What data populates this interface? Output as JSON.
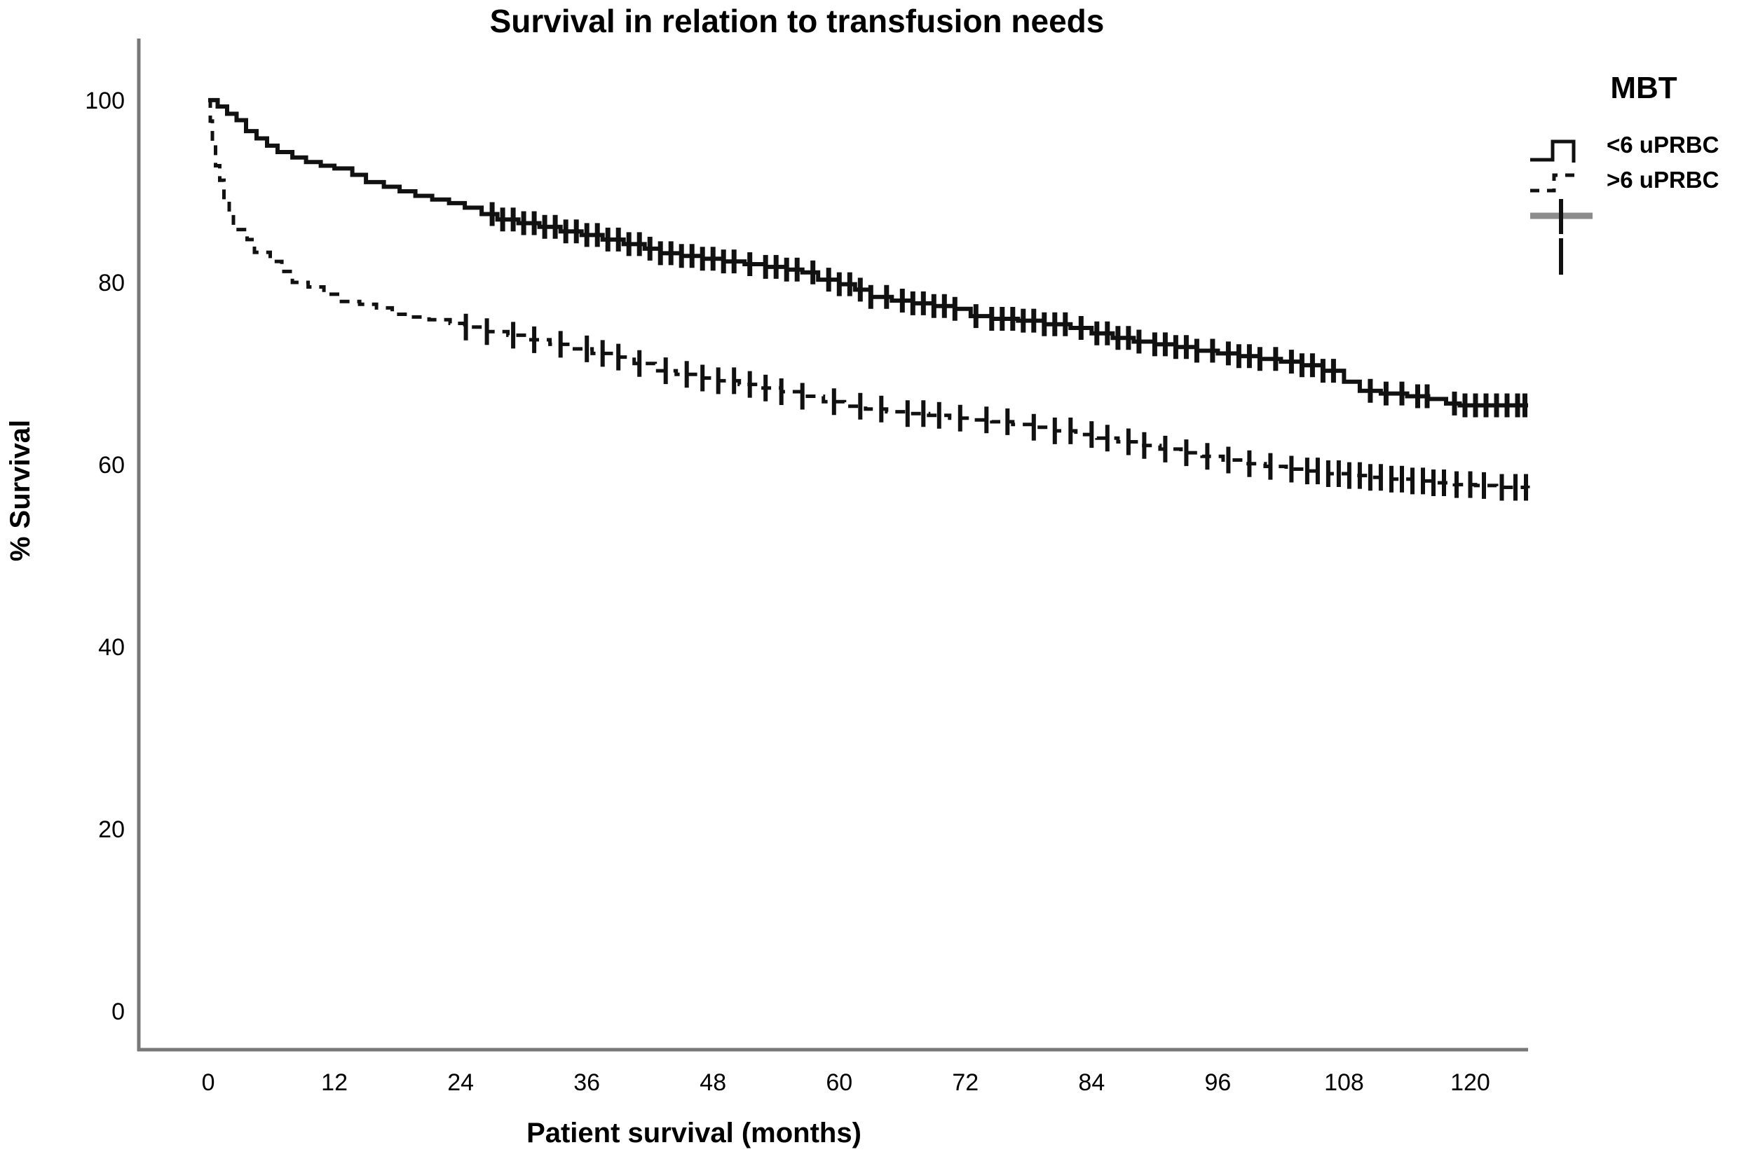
{
  "title": "Survival in relation to transfusion needs",
  "x_axis": {
    "label": "Patient survival (months)",
    "ticks": [
      0,
      12,
      24,
      36,
      48,
      60,
      72,
      84,
      96,
      108,
      120
    ],
    "range": [
      -6.6,
      125.5
    ]
  },
  "y_axis": {
    "label": "% Survival",
    "ticks": [
      0,
      20,
      40,
      60,
      80,
      100
    ],
    "range": [
      -4.23,
      106.38
    ]
  },
  "legend": {
    "title": "MBT",
    "entries": [
      {
        "label": "<6 uPRBC",
        "style": "solid-step-line"
      },
      {
        "label": ">6 uPRBC",
        "style": "dashed-step-line"
      },
      {
        "label": "",
        "style": "censor-plus-mark"
      },
      {
        "label": "",
        "style": "censor-tick-mark"
      }
    ]
  },
  "colors": {
    "curve": "#111111",
    "axis": "#787878",
    "censor_gray": "#8c8c8c",
    "background": "#ffffff"
  },
  "chart_data": {
    "type": "line",
    "subtype": "kaplan-meier-step",
    "title": "Survival in relation to transfusion needs",
    "xlabel": "Patient survival (months)",
    "ylabel": "% Survival",
    "xlim": [
      -6.6,
      125.5
    ],
    "ylim": [
      -4.23,
      106.38
    ],
    "grid": false,
    "legend_position": "top-right",
    "series": [
      {
        "name": "<6 uPRBC",
        "line_style": "solid",
        "points": [
          [
            0,
            100
          ],
          [
            0.9,
            99.3
          ],
          [
            1.8,
            98.5
          ],
          [
            2.7,
            97.8
          ],
          [
            3.6,
            96.6
          ],
          [
            4.6,
            95.8
          ],
          [
            5.6,
            95.0
          ],
          [
            6.6,
            94.3
          ],
          [
            8,
            93.7
          ],
          [
            9.3,
            93.2
          ],
          [
            10.7,
            92.8
          ],
          [
            12,
            92.5
          ],
          [
            13.7,
            91.8
          ],
          [
            15,
            91.0
          ],
          [
            16.7,
            90.5
          ],
          [
            18.2,
            90.0
          ],
          [
            19.7,
            89.5
          ],
          [
            21.3,
            89.1
          ],
          [
            22.9,
            88.7
          ],
          [
            24.4,
            88.2
          ],
          [
            26,
            87.5
          ],
          [
            27.5,
            86.9
          ],
          [
            29.5,
            86.5
          ],
          [
            31.5,
            86.1
          ],
          [
            33.5,
            85.6
          ],
          [
            35.5,
            85.2
          ],
          [
            37.5,
            84.7
          ],
          [
            39.5,
            84.2
          ],
          [
            41.5,
            83.7
          ],
          [
            43,
            83.2
          ],
          [
            45,
            82.9
          ],
          [
            47,
            82.6
          ],
          [
            49,
            82.3
          ],
          [
            51,
            82.0
          ],
          [
            53,
            81.7
          ],
          [
            55,
            81.4
          ],
          [
            56.5,
            81.1
          ],
          [
            58,
            80.3
          ],
          [
            60,
            79.8
          ],
          [
            61.5,
            79.2
          ],
          [
            63,
            78.4
          ],
          [
            65,
            78.0
          ],
          [
            67,
            77.7
          ],
          [
            69,
            77.4
          ],
          [
            71,
            77.1
          ],
          [
            72.5,
            76.3
          ],
          [
            74.5,
            76.0
          ],
          [
            77,
            75.8
          ],
          [
            79.5,
            75.4
          ],
          [
            82,
            75.0
          ],
          [
            84,
            74.4
          ],
          [
            86,
            73.9
          ],
          [
            88,
            73.5
          ],
          [
            90,
            73.2
          ],
          [
            92,
            72.9
          ],
          [
            94,
            72.5
          ],
          [
            96,
            72.2
          ],
          [
            98,
            71.9
          ],
          [
            100,
            71.6
          ],
          [
            102,
            71.3
          ],
          [
            104,
            70.9
          ],
          [
            106,
            70.3
          ],
          [
            108,
            69.1
          ],
          [
            109.5,
            68.1
          ],
          [
            111.5,
            67.8
          ],
          [
            114,
            67.5
          ],
          [
            116,
            67.2
          ],
          [
            117.7,
            66.7
          ],
          [
            119,
            66.5
          ],
          [
            125.5,
            66.5
          ]
        ],
        "censored_times": [
          27,
          28,
          29,
          30,
          31,
          32,
          33,
          34,
          35,
          36,
          37,
          38,
          39,
          40,
          41,
          42,
          43,
          44,
          45,
          46,
          47,
          48,
          49,
          50,
          51.5,
          53,
          54,
          55,
          56,
          57.5,
          59,
          60,
          61,
          62,
          63,
          64.5,
          66,
          67,
          68,
          69,
          70,
          71,
          73,
          74.5,
          75.5,
          76.5,
          77.5,
          78.5,
          79.5,
          80.5,
          81.5,
          83,
          84.5,
          85.5,
          86.5,
          87.5,
          88.5,
          90,
          91,
          92,
          93,
          94,
          95.5,
          97,
          98,
          99,
          100,
          101.5,
          103,
          104,
          105,
          106,
          107,
          110.5,
          112,
          113.5,
          115,
          115.9,
          118.5,
          119.5,
          120.5,
          121.5,
          122.5,
          123.5,
          124.5,
          125.2
        ]
      },
      {
        "name": ">6 uPRBC",
        "line_style": "dashed",
        "points": [
          [
            0,
            100
          ],
          [
            0.2,
            97.7
          ],
          [
            0.4,
            95.2
          ],
          [
            0.7,
            92.8
          ],
          [
            1.1,
            91.2
          ],
          [
            1.5,
            88.9
          ],
          [
            2,
            87.5
          ],
          [
            2.4,
            85.8
          ],
          [
            3.7,
            84.7
          ],
          [
            4.4,
            83.3
          ],
          [
            5.9,
            82.3
          ],
          [
            7,
            81.2
          ],
          [
            8,
            80.0
          ],
          [
            9.5,
            79.5
          ],
          [
            11,
            78.7
          ],
          [
            12.5,
            77.9
          ],
          [
            14.4,
            77.6
          ],
          [
            16,
            77.2
          ],
          [
            17.5,
            76.5
          ],
          [
            19.2,
            76.2
          ],
          [
            21,
            75.9
          ],
          [
            23,
            75.5
          ],
          [
            24.4,
            75.1
          ],
          [
            26.5,
            74.6
          ],
          [
            28.5,
            74.2
          ],
          [
            30.5,
            73.7
          ],
          [
            32.5,
            73.2
          ],
          [
            34.5,
            72.7
          ],
          [
            36.5,
            72.2
          ],
          [
            38.5,
            71.8
          ],
          [
            40.5,
            71.1
          ],
          [
            42.5,
            70.3
          ],
          [
            44.5,
            69.9
          ],
          [
            46.5,
            69.5
          ],
          [
            48.5,
            69.2
          ],
          [
            50.5,
            68.8
          ],
          [
            52.5,
            68.4
          ],
          [
            54.5,
            68.0
          ],
          [
            56.5,
            67.5
          ],
          [
            58.5,
            66.9
          ],
          [
            60.5,
            66.4
          ],
          [
            62.5,
            66.1
          ],
          [
            64.5,
            65.8
          ],
          [
            66.5,
            65.6
          ],
          [
            68.5,
            65.4
          ],
          [
            70.5,
            65.1
          ],
          [
            72.5,
            64.9
          ],
          [
            74.5,
            64.7
          ],
          [
            76.5,
            64.4
          ],
          [
            78.5,
            64.1
          ],
          [
            80.5,
            63.7
          ],
          [
            82.5,
            63.3
          ],
          [
            84.5,
            62.9
          ],
          [
            86.5,
            62.5
          ],
          [
            88.5,
            62.1
          ],
          [
            90.5,
            61.7
          ],
          [
            92.5,
            61.3
          ],
          [
            94.5,
            60.9
          ],
          [
            96.5,
            60.5
          ],
          [
            98.5,
            60.1
          ],
          [
            100.5,
            59.8
          ],
          [
            102.5,
            59.5
          ],
          [
            104.5,
            59.3
          ],
          [
            106.5,
            59.0
          ],
          [
            108.5,
            58.8
          ],
          [
            110.5,
            58.6
          ],
          [
            112.5,
            58.4
          ],
          [
            114.5,
            58.2
          ],
          [
            116.5,
            58.0
          ],
          [
            118.5,
            57.8
          ],
          [
            120.5,
            57.7
          ],
          [
            122.5,
            57.5
          ],
          [
            125.5,
            57.4
          ]
        ],
        "censored_times": [
          24.5,
          26.5,
          29,
          31,
          33.5,
          36,
          37.5,
          39,
          41,
          43.5,
          45.5,
          47,
          48.5,
          50,
          51.5,
          53,
          54.5,
          56.5,
          59.5,
          62,
          64,
          66.5,
          68,
          69.5,
          71.5,
          74,
          76,
          78.5,
          80.5,
          82,
          84,
          85.5,
          87.5,
          89,
          91,
          93,
          95,
          97,
          99,
          101,
          103,
          104.5,
          105.5,
          106.5,
          107.5,
          108.5,
          109.5,
          110.5,
          111.5,
          112.5,
          113.5,
          114.5,
          115.5,
          116.5,
          117.5,
          118.7,
          120,
          121.3,
          123,
          124.3,
          125.3
        ]
      }
    ]
  }
}
